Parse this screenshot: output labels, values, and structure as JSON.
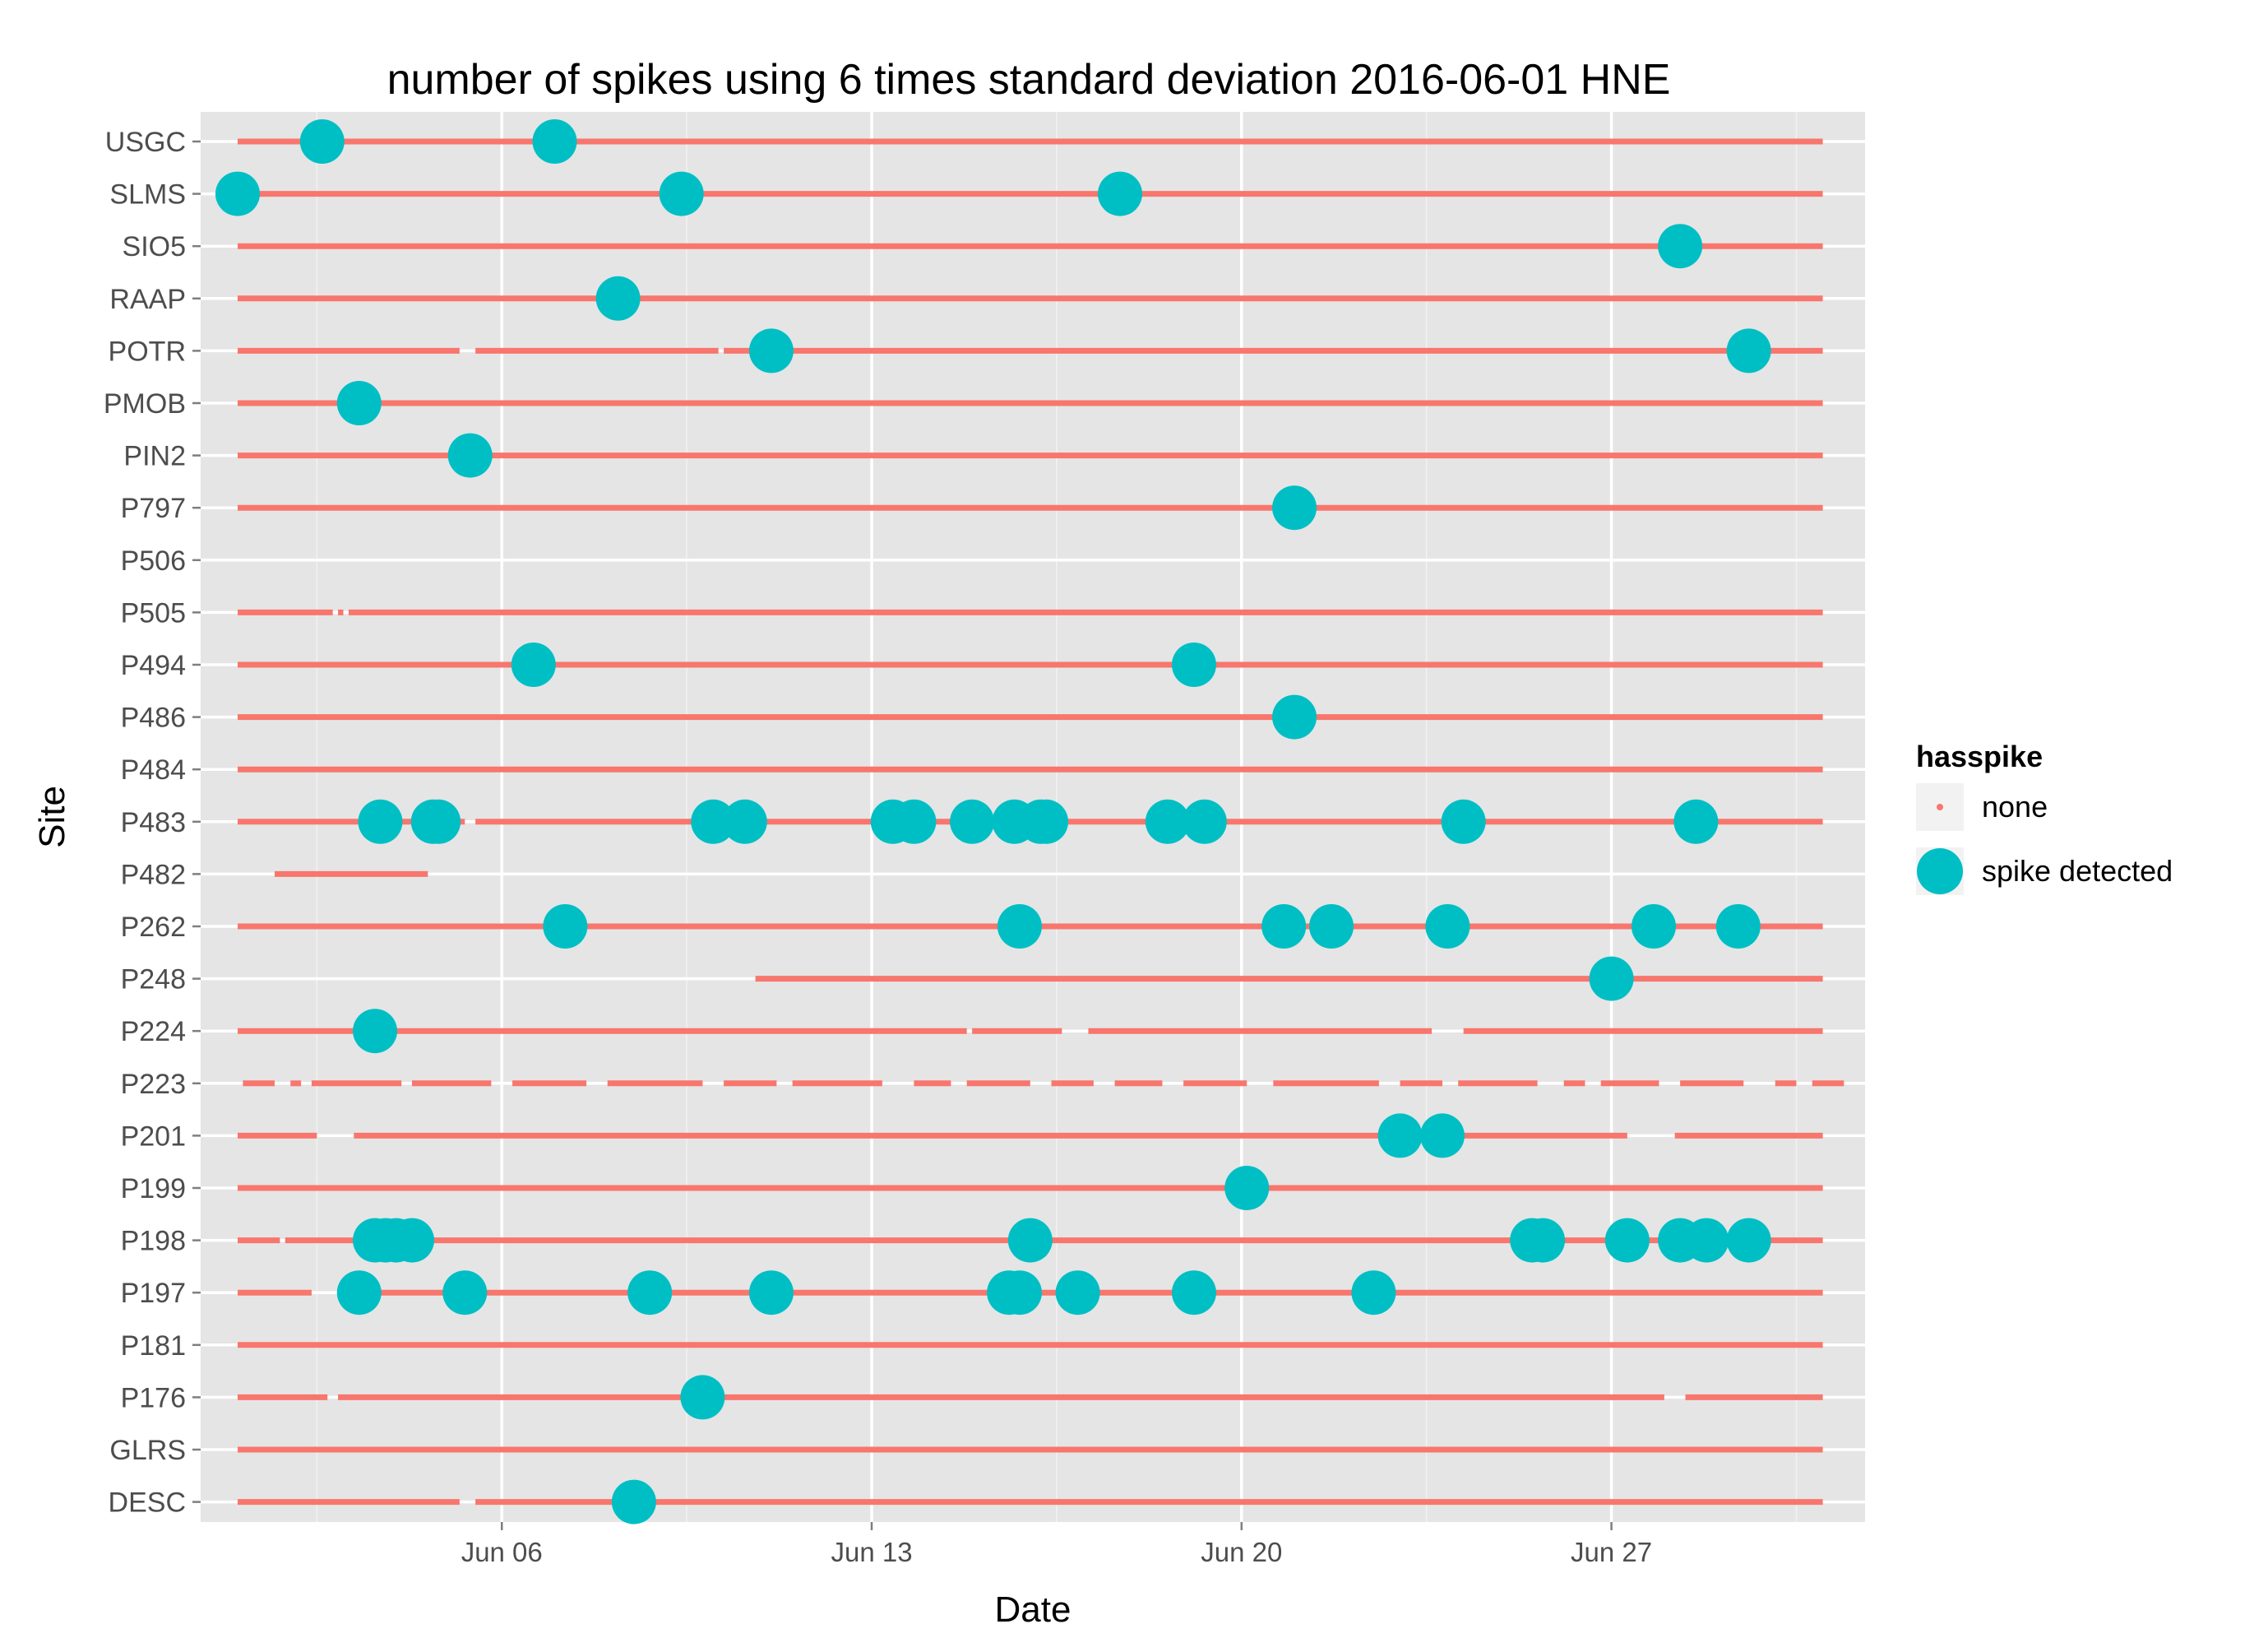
{
  "chart_data": {
    "type": "scatter",
    "title": "number of spikes using  6 times standard deviation 2016-06-01 HNE",
    "xlabel": "Date",
    "ylabel": "Site",
    "x_start": "2016-06-01",
    "xlim": [
      -0.7,
      30.8
    ],
    "x_ticks": [
      {
        "label": "Jun 06",
        "day": 5
      },
      {
        "label": "Jun 13",
        "day": 12
      },
      {
        "label": "Jun 20",
        "day": 19
      },
      {
        "label": "Jun 27",
        "day": 26
      }
    ],
    "sites": [
      "USGC",
      "SLMS",
      "SIO5",
      "RAAP",
      "POTR",
      "PMOB",
      "PIN2",
      "P797",
      "P506",
      "P505",
      "P494",
      "P486",
      "P484",
      "P483",
      "P482",
      "P262",
      "P248",
      "P224",
      "P223",
      "P201",
      "P199",
      "P198",
      "P197",
      "P181",
      "P176",
      "GLRS",
      "DESC"
    ],
    "legend": {
      "title": "hasspike",
      "position": "right",
      "items": [
        {
          "label": "none",
          "color": "#F8766D"
        },
        {
          "label": "spike detected",
          "color": "#00BFC4"
        }
      ]
    },
    "series": [
      {
        "name": "none",
        "color": "#F8766D",
        "description": "continuous data availability (day ranges)",
        "segments": {
          "USGC": [
            [
              0,
              30
            ]
          ],
          "SLMS": [
            [
              0,
              30
            ]
          ],
          "SIO5": [
            [
              0,
              30
            ]
          ],
          "RAAP": [
            [
              0,
              30
            ]
          ],
          "POTR": [
            [
              0,
              4.2
            ],
            [
              4.5,
              9.1
            ],
            [
              9.2,
              30
            ]
          ],
          "PMOB": [
            [
              0,
              30
            ]
          ],
          "PIN2": [
            [
              0,
              30
            ]
          ],
          "P797": [
            [
              0,
              30
            ]
          ],
          "P506": [],
          "P505": [
            [
              0,
              1.8
            ],
            [
              1.9,
              2.0
            ],
            [
              2.1,
              30
            ]
          ],
          "P494": [
            [
              0,
              30
            ]
          ],
          "P486": [
            [
              0,
              30
            ]
          ],
          "P484": [
            [
              0,
              30
            ]
          ],
          "P483": [
            [
              0,
              4.3
            ],
            [
              4.5,
              30
            ]
          ],
          "P482": [
            [
              0.7,
              3.6
            ]
          ],
          "P262": [
            [
              0,
              30
            ]
          ],
          "P248": [
            [
              9.8,
              30
            ]
          ],
          "P224": [
            [
              0,
              13.8
            ],
            [
              13.9,
              15.6
            ],
            [
              16.1,
              22.6
            ],
            [
              23.2,
              30
            ]
          ],
          "P223": [
            [
              0.1,
              0.7
            ],
            [
              1.0,
              1.2
            ],
            [
              1.4,
              3.1
            ],
            [
              3.3,
              4.8
            ],
            [
              5.2,
              6.6
            ],
            [
              7.0,
              8.8
            ],
            [
              9.2,
              10.2
            ],
            [
              10.5,
              12.2
            ],
            [
              12.8,
              13.5
            ],
            [
              13.8,
              15.0
            ],
            [
              15.4,
              16.2
            ],
            [
              16.6,
              17.5
            ],
            [
              17.9,
              19.1
            ],
            [
              19.6,
              21.6
            ],
            [
              22.0,
              22.8
            ],
            [
              23.1,
              24.6
            ],
            [
              25.1,
              25.5
            ],
            [
              25.8,
              26.9
            ],
            [
              27.3,
              28.5
            ],
            [
              29.1,
              29.5
            ],
            [
              29.8,
              30.4
            ]
          ],
          "P201": [
            [
              0,
              1.5
            ],
            [
              2.2,
              26.3
            ],
            [
              27.2,
              30
            ]
          ],
          "P199": [
            [
              0,
              30
            ]
          ],
          "P198": [
            [
              0,
              0.8
            ],
            [
              0.9,
              30
            ]
          ],
          "P197": [
            [
              0,
              1.4
            ],
            [
              1.9,
              30
            ]
          ],
          "P181": [
            [
              0,
              30
            ]
          ],
          "P176": [
            [
              0,
              1.7
            ],
            [
              1.9,
              27.0
            ],
            [
              27.4,
              30
            ]
          ],
          "GLRS": [
            [
              0,
              30
            ]
          ],
          "DESC": [
            [
              0,
              4.2
            ],
            [
              4.5,
              30
            ]
          ]
        }
      },
      {
        "name": "spike detected",
        "color": "#00BFC4",
        "description": "spike events (day offset from 2016-06-01)",
        "points": {
          "USGC": [
            1.6,
            6.0
          ],
          "SLMS": [
            0.0,
            8.4,
            16.7
          ],
          "SIO5": [
            27.3
          ],
          "RAAP": [
            7.2
          ],
          "POTR": [
            10.1,
            28.6
          ],
          "PMOB": [
            2.3
          ],
          "PIN2": [
            4.4
          ],
          "P797": [
            20.0
          ],
          "P494": [
            5.6,
            18.1
          ],
          "P486": [
            20.0
          ],
          "P483": [
            2.7,
            3.7,
            3.8,
            9.0,
            9.6,
            12.4,
            12.8,
            13.9,
            14.7,
            15.2,
            15.3,
            17.6,
            18.3,
            23.2,
            27.6
          ],
          "P262": [
            6.2,
            14.8,
            19.8,
            20.7,
            22.9,
            26.8,
            28.4
          ],
          "P248": [
            26.0
          ],
          "P224": [
            2.6
          ],
          "P201": [
            22.0,
            22.8
          ],
          "P199": [
            19.1
          ],
          "P198": [
            2.6,
            2.8,
            3.0,
            3.3,
            15.0,
            24.5,
            24.7,
            26.3,
            27.3,
            27.8,
            28.6
          ],
          "P197": [
            2.3,
            4.3,
            7.8,
            10.1,
            14.6,
            14.8,
            15.9,
            18.1,
            21.5
          ],
          "P176": [
            8.8
          ],
          "DESC": [
            7.5
          ]
        }
      }
    ]
  }
}
